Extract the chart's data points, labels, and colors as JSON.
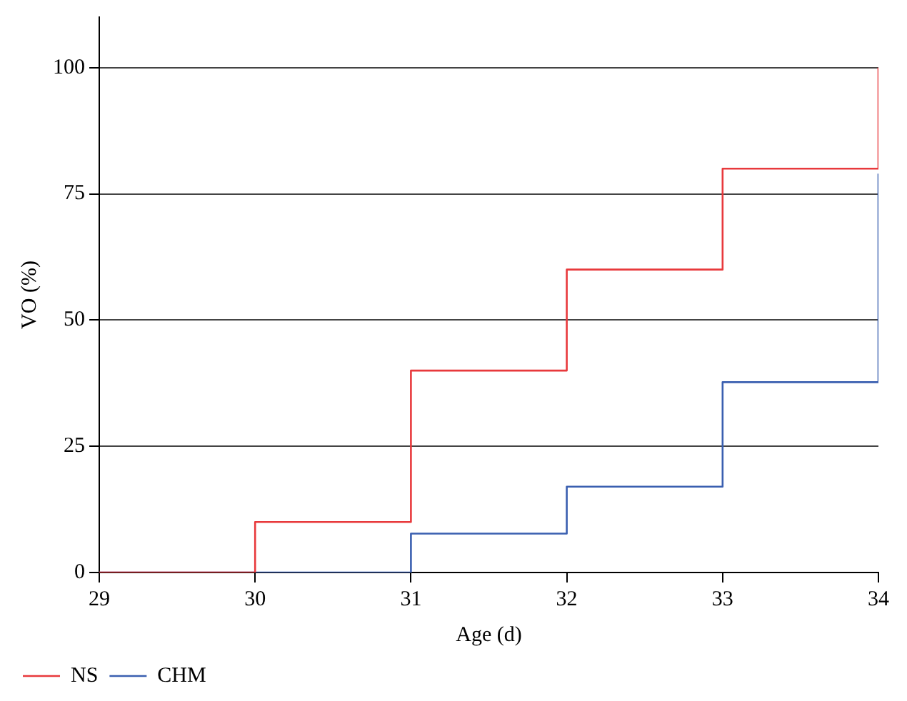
{
  "chart_data": {
    "type": "step",
    "xlabel": "Age (d)",
    "ylabel": "VO (%)",
    "x": [
      29,
      30,
      31,
      32,
      33,
      34
    ],
    "series": [
      {
        "name": "NS",
        "color": "#e8393c",
        "values": [
          0,
          10,
          40,
          60,
          80,
          100
        ]
      },
      {
        "name": "CHM",
        "color": "#3a5fb0",
        "values": [
          0,
          0,
          7.7,
          17,
          37.7,
          79
        ]
      }
    ],
    "xlim": [
      29,
      34
    ],
    "xticks": [
      29,
      30,
      31,
      32,
      33,
      34
    ],
    "ylim": [
      0,
      110
    ],
    "yticks": [
      0,
      25,
      50,
      75,
      100
    ],
    "grid": "y",
    "legend": "bottom left",
    "marker": "none",
    "line_style": "solid"
  }
}
